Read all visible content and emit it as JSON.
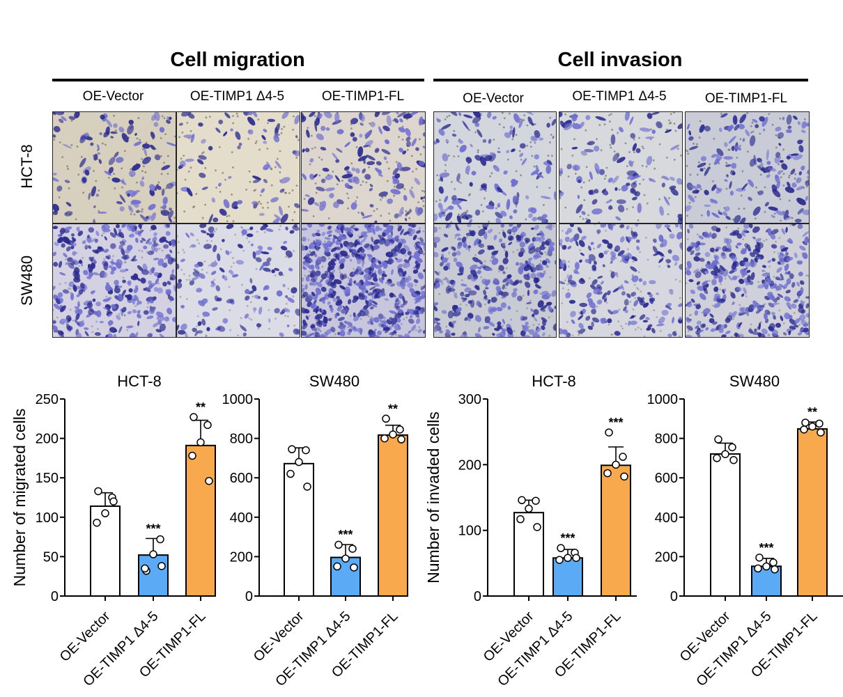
{
  "figure": {
    "sections": [
      {
        "title": "Cell migration",
        "columns": [
          "OE-Vector",
          "OE-TIMP1 Δ4-5",
          "OE-TIMP1-FL"
        ]
      },
      {
        "title": "Cell invasion",
        "columns": [
          "OE-Vector",
          "OE-TIMP1 Δ4-5",
          "OE-TIMP1-FL"
        ]
      }
    ],
    "rows": [
      "HCT-8",
      "SW480"
    ]
  },
  "colors": {
    "vector": "#ffffff",
    "delta": "#5aaaf5",
    "fl": "#f8a94e",
    "stain_light": "#6f6fd0",
    "stain_dark": "#2a2a8f"
  },
  "chart_data": [
    {
      "type": "bar",
      "title": "HCT-8",
      "ylabel": "Number of  migrated cells",
      "categories": [
        "OE-Vector",
        "OE-TIMP1 Δ4-5",
        "OE-TIMP1-FL"
      ],
      "values": [
        114,
        52,
        191
      ],
      "errors": [
        17,
        21,
        32
      ],
      "points": [
        [
          133,
          125,
          105,
          93,
          120
        ],
        [
          32,
          72,
          53,
          35,
          38
        ],
        [
          227,
          217,
          195,
          178,
          146
        ]
      ],
      "significance": [
        "",
        "***",
        "**"
      ],
      "ylim": [
        0,
        250
      ],
      "yticks": [
        0,
        50,
        100,
        150,
        200,
        250
      ]
    },
    {
      "type": "bar",
      "title": "SW480",
      "ylabel": "",
      "categories": [
        "OE-Vector",
        "OE-TIMP1 Δ4-5",
        "OE-TIMP1-FL"
      ],
      "values": [
        672,
        196,
        817
      ],
      "errors": [
        80,
        65,
        50
      ],
      "points": [
        [
          745,
          740,
          680,
          620,
          555
        ],
        [
          260,
          240,
          190,
          150,
          145
        ],
        [
          900,
          845,
          820,
          800,
          795
        ]
      ],
      "significance": [
        "",
        "***",
        "**"
      ],
      "ylim": [
        0,
        1000
      ],
      "yticks": [
        0,
        200,
        400,
        600,
        800,
        1000
      ]
    },
    {
      "type": "bar",
      "title": "HCT-8",
      "ylabel": "Number of invaded cells",
      "categories": [
        "OE-Vector",
        "OE-TIMP1 Δ4-5",
        "OE-TIMP1-FL"
      ],
      "values": [
        127,
        58,
        199
      ],
      "errors": [
        19,
        13,
        28
      ],
      "points": [
        [
          146,
          145,
          133,
          117,
          105
        ],
        [
          73,
          66,
          58,
          55,
          58
        ],
        [
          249,
          212,
          200,
          187,
          182
        ]
      ],
      "significance": [
        "",
        "***",
        "***"
      ],
      "ylim": [
        0,
        300
      ],
      "yticks": [
        0,
        100,
        200,
        300
      ]
    },
    {
      "type": "bar",
      "title": "SW480",
      "ylabel": "",
      "categories": [
        "OE-Vector",
        "OE-TIMP1 Δ4-5",
        "OE-TIMP1-FL"
      ],
      "values": [
        721,
        151,
        848
      ],
      "errors": [
        55,
        40,
        35
      ],
      "points": [
        [
          795,
          755,
          720,
          700,
          690
        ],
        [
          195,
          170,
          150,
          140,
          135
        ],
        [
          880,
          875,
          860,
          845,
          830
        ]
      ],
      "significance": [
        "",
        "***",
        "**"
      ],
      "ylim": [
        0,
        1000
      ],
      "yticks": [
        0,
        200,
        400,
        600,
        800,
        1000
      ]
    }
  ]
}
